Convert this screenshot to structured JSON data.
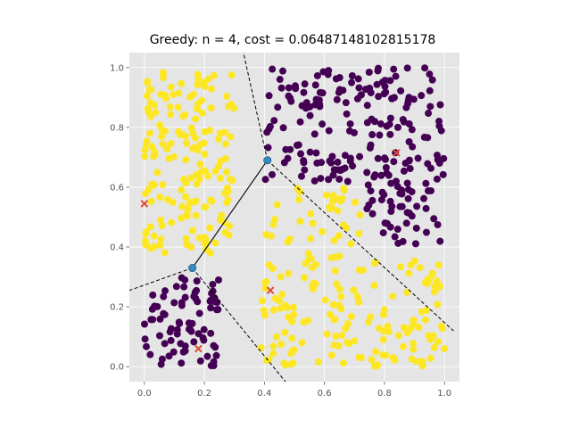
{
  "chart_data": {
    "type": "scatter",
    "title": "Greedy: n = 4, cost = 0.06487148102815178",
    "xlabel": "",
    "ylabel": "",
    "xlim": [
      -0.05,
      1.05
    ],
    "ylim": [
      -0.05,
      1.05
    ],
    "xticks": [
      "0.0",
      "0.2",
      "0.4",
      "0.6",
      "0.8",
      "1.0"
    ],
    "yticks": [
      "0.0",
      "0.2",
      "0.4",
      "0.6",
      "0.8",
      "1.0"
    ],
    "grid": true,
    "legend": "none",
    "colors": {
      "background": "#e5e5e5",
      "grid": "#ffffff",
      "class_0": "#440154",
      "class_1": "#fde725",
      "centroid": "#e24a33",
      "vertex": "#348abd",
      "line": "#000000"
    },
    "point_classes": [
      {
        "name": "class_0",
        "color": "#440154",
        "regions": [
          {
            "x_min": 0.4,
            "x_max": 1.0,
            "y_min": 0.4,
            "y_max": 1.0,
            "count": 230,
            "diag_cut": true
          },
          {
            "x_min": 0.0,
            "x_max": 0.25,
            "y_min": 0.0,
            "y_max": 0.3,
            "count": 80
          }
        ]
      },
      {
        "name": "class_1",
        "color": "#fde725",
        "regions": [
          {
            "x_min": 0.0,
            "x_max": 0.3,
            "y_min": 0.38,
            "y_max": 1.0,
            "count": 170
          },
          {
            "x_min": 0.38,
            "x_max": 1.0,
            "y_min": 0.0,
            "y_max": 0.36,
            "count": 150
          },
          {
            "x_min": 0.4,
            "x_max": 0.72,
            "y_min": 0.36,
            "y_max": 0.62,
            "count": 40
          }
        ]
      }
    ],
    "centroids": [
      {
        "x": 0.0,
        "y": 0.545
      },
      {
        "x": 0.84,
        "y": 0.715
      },
      {
        "x": 0.42,
        "y": 0.255
      },
      {
        "x": 0.18,
        "y": 0.06
      }
    ],
    "vertices": [
      {
        "x": 0.41,
        "y": 0.69
      },
      {
        "x": 0.16,
        "y": 0.33
      }
    ],
    "solid_edges": [
      {
        "x1": 0.41,
        "y1": 0.69,
        "x2": 0.16,
        "y2": 0.33
      }
    ],
    "dashed_edges": [
      {
        "x1": 0.41,
        "y1": 0.69,
        "x2": 0.33,
        "y2": 1.05
      },
      {
        "x1": 0.41,
        "y1": 0.69,
        "x2": 1.03,
        "y2": 0.12
      },
      {
        "x1": 0.16,
        "y1": 0.33,
        "x2": -0.05,
        "y2": 0.255
      },
      {
        "x1": 0.16,
        "y1": 0.33,
        "x2": 0.47,
        "y2": -0.05
      }
    ]
  }
}
